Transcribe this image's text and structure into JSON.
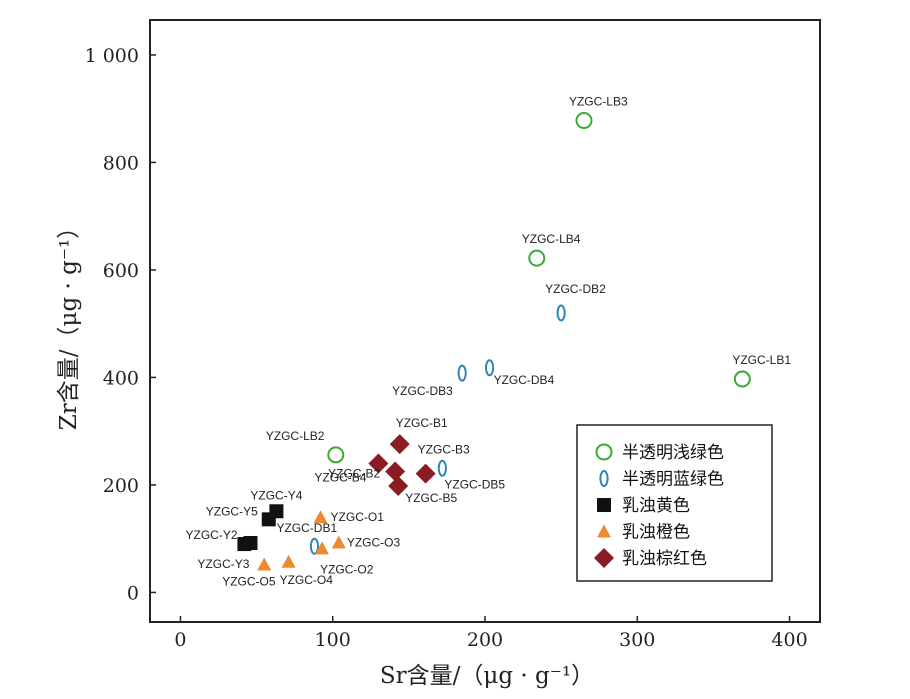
{
  "chart_data": {
    "type": "scatter",
    "xlabel": "Sr含量/（μg · g⁻¹）",
    "ylabel": "Zr含量/（μg · g⁻¹）",
    "xlim": [
      -20,
      420
    ],
    "ylim": [
      -55,
      1065
    ],
    "xticks": [
      {
        "value": 0,
        "label": "0"
      },
      {
        "value": 100,
        "label": "100"
      },
      {
        "value": 200,
        "label": "200"
      },
      {
        "value": 300,
        "label": "300"
      },
      {
        "value": 400,
        "label": "400"
      }
    ],
    "yticks": [
      {
        "value": 0,
        "label": "0"
      },
      {
        "value": 200,
        "label": "200"
      },
      {
        "value": 400,
        "label": "400"
      },
      {
        "value": 600,
        "label": "600"
      },
      {
        "value": 800,
        "label": "800"
      },
      {
        "value": 1000,
        "label": "1 000"
      }
    ],
    "legend_position": "bottom-right",
    "series": [
      {
        "name": "半透明浅绿色",
        "marker": "circle-open",
        "color": "#3aaa35",
        "points": [
          {
            "x": 265,
            "y": 878,
            "label": "YZGC-LB3"
          },
          {
            "x": 234,
            "y": 622,
            "label": "YZGC-LB4"
          },
          {
            "x": 369,
            "y": 397,
            "label": "YZGC-LB1"
          },
          {
            "x": 102,
            "y": 256,
            "label": "YZGC-LB2"
          }
        ]
      },
      {
        "name": "半透明蓝绿色",
        "marker": "ellipse-open",
        "color": "#2e86b5",
        "points": [
          {
            "x": 250,
            "y": 520,
            "label": "YZGC-DB2"
          },
          {
            "x": 185,
            "y": 408,
            "label": "YZGC-DB3"
          },
          {
            "x": 203,
            "y": 418,
            "label": "YZGC-DB4"
          },
          {
            "x": 172,
            "y": 231,
            "label": "YZGC-DB5"
          },
          {
            "x": 88,
            "y": 86,
            "label": "YZGC-DB1"
          }
        ]
      },
      {
        "name": "乳浊黄色",
        "marker": "square",
        "color": "#111111",
        "points": [
          {
            "x": 63,
            "y": 151,
            "label": "YZGC-Y4"
          },
          {
            "x": 58,
            "y": 136,
            "label": "YZGC-Y5"
          },
          {
            "x": 46,
            "y": 92,
            "label": "YZGC-Y2"
          },
          {
            "x": 42,
            "y": 90,
            "label": "YZGC-Y3"
          }
        ]
      },
      {
        "name": "乳浊橙色",
        "marker": "triangle",
        "color": "#ec8a2d",
        "points": [
          {
            "x": 92,
            "y": 140,
            "label": "YZGC-O1"
          },
          {
            "x": 104,
            "y": 93,
            "label": "YZGC-O3"
          },
          {
            "x": 93,
            "y": 82,
            "label": "YZGC-O2"
          },
          {
            "x": 71,
            "y": 57,
            "label": "YZGC-O4"
          },
          {
            "x": 55,
            "y": 52,
            "label": "YZGC-O5"
          }
        ]
      },
      {
        "name": "乳浊棕红色",
        "marker": "diamond",
        "color": "#8b1c24",
        "points": [
          {
            "x": 144,
            "y": 276,
            "label": "YZGC-B1"
          },
          {
            "x": 161,
            "y": 221,
            "label": "YZGC-B3"
          },
          {
            "x": 130,
            "y": 240,
            "label": "YZGC-B4"
          },
          {
            "x": 141,
            "y": 225,
            "label": "YZGC-B2"
          },
          {
            "x": 143,
            "y": 198,
            "label": "YZGC-B5"
          }
        ]
      }
    ]
  }
}
